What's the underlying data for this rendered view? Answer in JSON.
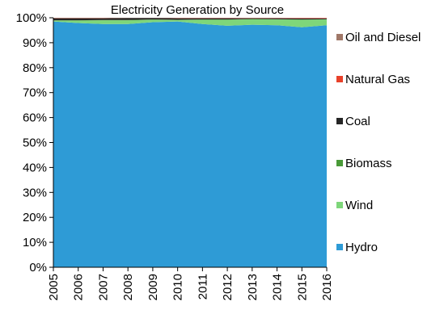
{
  "chart_data": {
    "type": "area",
    "stacked_percent": true,
    "title": "Electricity Generation by Source",
    "xlabel": "",
    "ylabel": "",
    "ylim": [
      0,
      100
    ],
    "yticks": [
      "0%",
      "10%",
      "20%",
      "30%",
      "40%",
      "50%",
      "60%",
      "70%",
      "80%",
      "90%",
      "100%"
    ],
    "categories": [
      "2005",
      "2006",
      "2007",
      "2008",
      "2009",
      "2010",
      "2011",
      "2012",
      "2013",
      "2014",
      "2015",
      "2016"
    ],
    "grid": false,
    "legend_position": "right",
    "series": [
      {
        "name": "Hydro",
        "color": "#2e9bd6",
        "values": [
          98.5,
          97.9,
          97.5,
          97.5,
          98.2,
          98.5,
          97.5,
          96.8,
          97.2,
          97.0,
          96.2,
          97.0
        ]
      },
      {
        "name": "Wind",
        "color": "#7ed67a",
        "values": [
          0.4,
          1.0,
          1.5,
          1.5,
          1.0,
          0.6,
          1.7,
          2.4,
          2.2,
          2.3,
          3.0,
          2.3
        ]
      },
      {
        "name": "Biomass",
        "color": "#4a9a38",
        "values": [
          0.1,
          0.1,
          0.1,
          0.1,
          0.1,
          0.1,
          0.1,
          0.1,
          0.1,
          0.1,
          0.1,
          0.1
        ]
      },
      {
        "name": "Coal",
        "color": "#262626",
        "values": [
          0.8,
          0.8,
          0.7,
          0.8,
          0.6,
          0.6,
          0.5,
          0.5,
          0.3,
          0.4,
          0.4,
          0.3
        ]
      },
      {
        "name": "Natural Gas",
        "color": "#e8412a",
        "values": [
          0.1,
          0.1,
          0.1,
          0.0,
          0.0,
          0.1,
          0.1,
          0.1,
          0.1,
          0.1,
          0.2,
          0.2
        ]
      },
      {
        "name": "Oil and Diesel",
        "color": "#a07868",
        "values": [
          0.1,
          0.1,
          0.1,
          0.1,
          0.1,
          0.1,
          0.1,
          0.1,
          0.1,
          0.1,
          0.1,
          0.1
        ]
      }
    ],
    "legend_order": [
      "Oil and Diesel",
      "Natural Gas",
      "Coal",
      "Biomass",
      "Wind",
      "Hydro"
    ]
  }
}
